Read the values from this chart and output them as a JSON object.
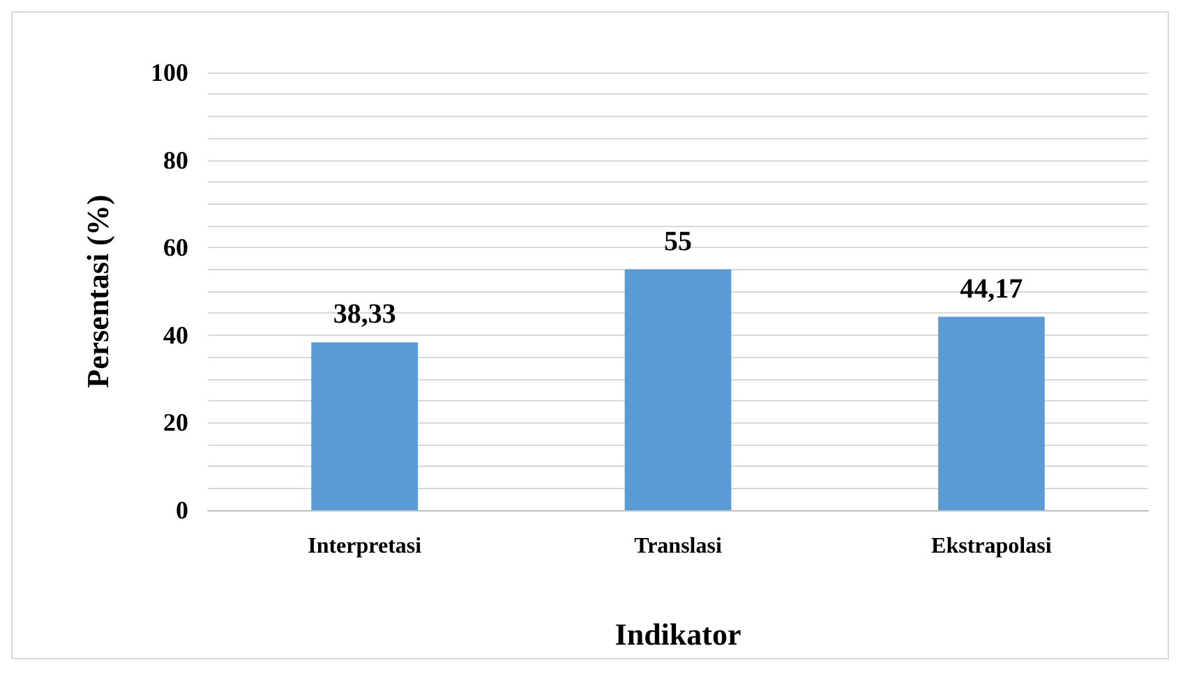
{
  "chart_data": {
    "type": "bar",
    "xlabel": "Indikator",
    "ylabel": "Persentasi (%)",
    "categories": [
      "Interpretasi",
      "Translasi",
      "Ekstrapolasi"
    ],
    "values": [
      38.33,
      55,
      44.17
    ],
    "color": "#5b9bd5",
    "value_labels": [
      "38,33",
      "55",
      "44,17"
    ],
    "ylim": [
      0,
      100
    ],
    "yticks": [
      0,
      {
        "value": 5,
        "label": null
      },
      {
        "value": 10,
        "label": null
      },
      {
        "value": 15,
        "label": null
      },
      20,
      {
        "value": 25,
        "label": null
      },
      {
        "value": 30,
        "label": null
      },
      {
        "value": 35,
        "label": null
      },
      40,
      {
        "value": 45,
        "label": null
      },
      {
        "value": 50,
        "label": null
      },
      {
        "value": 55,
        "label": null
      },
      60,
      {
        "value": 65,
        "label": null
      },
      {
        "value": 70,
        "label": null
      },
      {
        "value": 75,
        "label": null
      },
      80,
      {
        "value": 85,
        "label": null
      },
      {
        "value": 90,
        "label": null
      },
      {
        "value": 95,
        "label": null
      },
      100
    ],
    "grid": true
  }
}
